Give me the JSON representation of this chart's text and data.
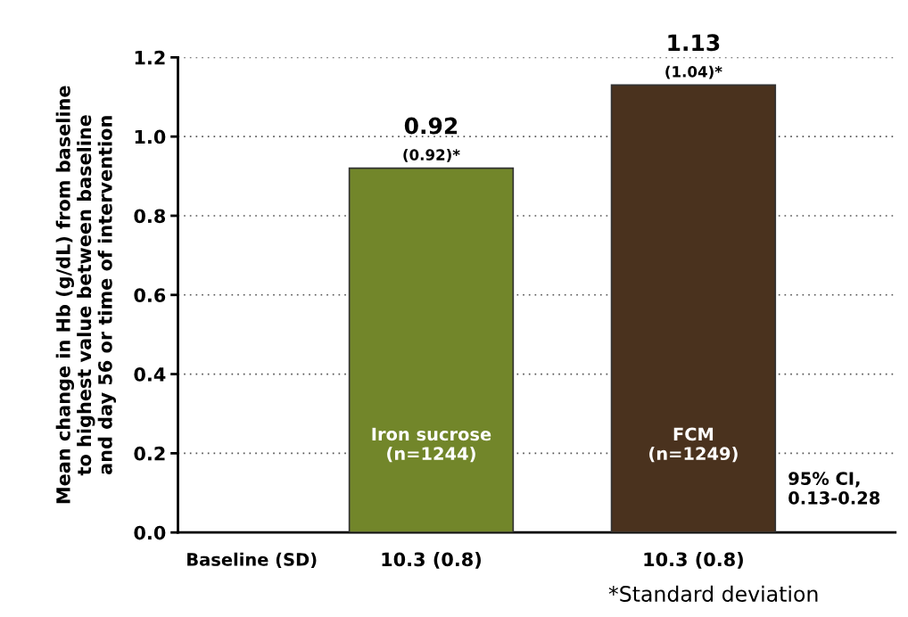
{
  "chart_data": {
    "type": "bar",
    "ylabel": "Mean change in Hb (g/dL) from baseline\nto highest value between baseline\nand day 56 or time of intervention",
    "categories": [
      "Iron sucrose\n(n=1244)",
      "FCM\n(n=1249)"
    ],
    "values": [
      0.92,
      1.13
    ],
    "colors": [
      "#72862a",
      "#4a321e"
    ],
    "value_labels": [
      "0.92\n(0.92)*",
      "1.13\n(1.04)*"
    ],
    "ylim": [
      0,
      1.2
    ],
    "yticks": [
      {
        "value": 0,
        "label": "0.0"
      },
      {
        "value": 0.2,
        "label": "0.2"
      },
      {
        "value": 0.4,
        "label": "0.4"
      },
      {
        "value": 0.6,
        "label": "0.6"
      },
      {
        "value": 0.8,
        "label": "0.8"
      },
      {
        "value": 1.0,
        "label": "1.0"
      },
      {
        "value": 1.2,
        "label": "1.2"
      }
    ],
    "grid": "y",
    "annotations": [
      "Baseline (SD)",
      "10.3 (0.8)",
      "10.3 (0.8)",
      "95% CI,\n0.13-0.28",
      "*Standard deviation"
    ]
  }
}
